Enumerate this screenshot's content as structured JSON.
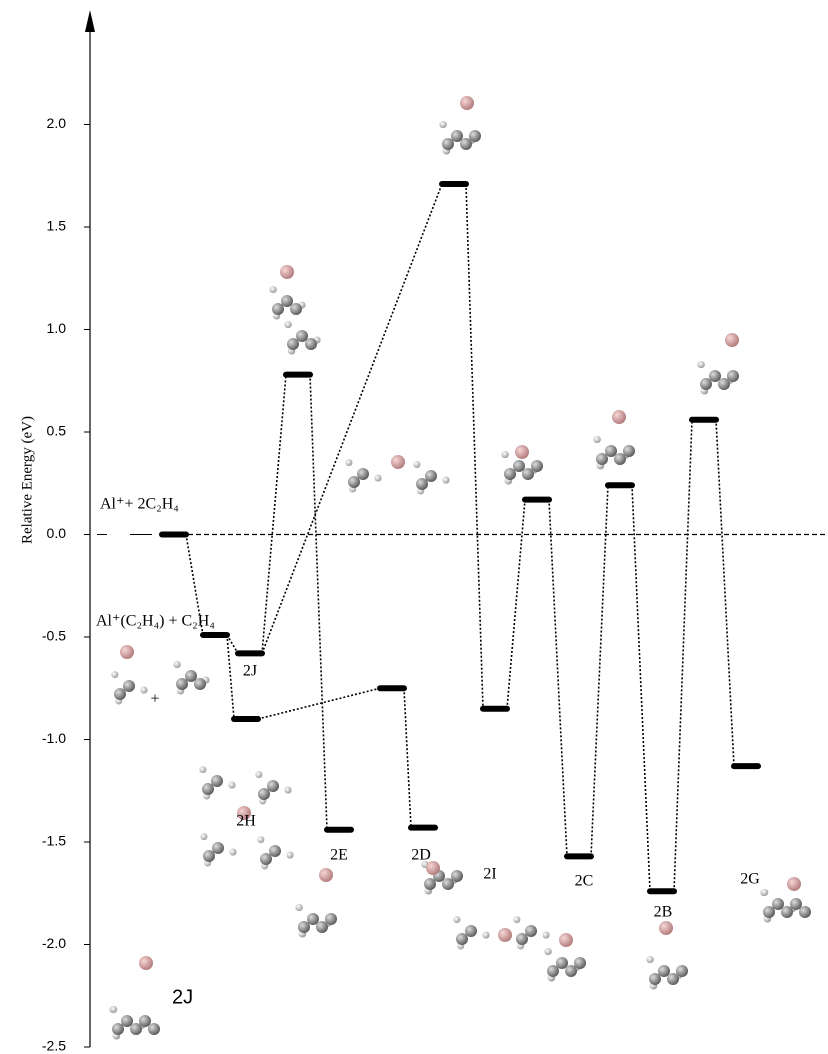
{
  "chart_data": {
    "type": "energy",
    "y_label": "Relative Energy (eV)",
    "ylim": [
      -2.5,
      2.5
    ],
    "yticks": [
      {
        "value": 2,
        "label": "2.0"
      },
      1.5,
      {
        "value": 1,
        "label": "1.0"
      },
      0.5,
      {
        "value": 0,
        "label": "0.0"
      },
      -0.5,
      {
        "value": -1,
        "label": "-1.0"
      },
      -1.5,
      {
        "value": -2,
        "label": "-2.0"
      },
      -2.5
    ],
    "reference_line": 0,
    "levels": [
      {
        "label": "Al⁺+ 2C₂H₄",
        "value": 0.0
      },
      {
        "label": "Al⁺(C₂H₄) + C₂H₄",
        "value": -0.49
      },
      {
        "label": "2J",
        "value": -0.58
      },
      {
        "label": "2H",
        "value": -0.9
      },
      {
        "label": null,
        "value": 0.78
      },
      {
        "label": "2E",
        "value": -1.44
      },
      {
        "label": null,
        "value": 1.71
      },
      {
        "label": null,
        "value": -0.75
      },
      {
        "label": "2D",
        "value": -1.43
      },
      {
        "label": "2I",
        "value": -0.85
      },
      {
        "label": null,
        "value": 0.17
      },
      {
        "label": "2C",
        "value": -1.57
      },
      {
        "label": null,
        "value": 0.24
      },
      {
        "label": "2B",
        "value": -1.74
      },
      {
        "label": null,
        "value": 0.56
      },
      {
        "label": "2G",
        "value": -1.13
      }
    ],
    "annotations": [
      "+",
      "2J"
    ]
  }
}
